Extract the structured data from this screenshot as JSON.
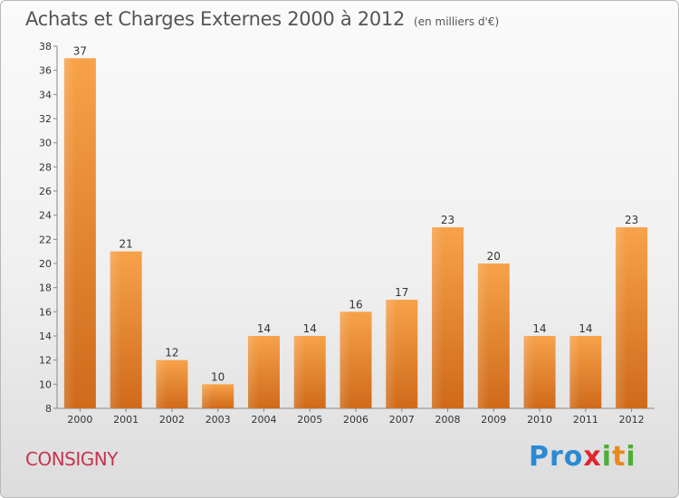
{
  "header": {
    "title": "Achats et Charges Externes 2000 à 2012",
    "unit": "(en milliers d'€)"
  },
  "footer": {
    "commune": "CONSIGNY",
    "logo": {
      "p1": "Pro",
      "p2": "x",
      "p3": "i",
      "p4": "t",
      "p5": "i"
    }
  },
  "colors": {
    "bar": "#f0902e",
    "bar_dark": "#cf6a1a",
    "commune": "#c8334e"
  },
  "chart_data": {
    "type": "bar",
    "categories": [
      "2000",
      "2001",
      "2002",
      "2003",
      "2004",
      "2005",
      "2006",
      "2007",
      "2008",
      "2009",
      "2010",
      "2011",
      "2012"
    ],
    "values": [
      37,
      21,
      12,
      10,
      14,
      14,
      16,
      17,
      23,
      20,
      14,
      14,
      23
    ],
    "title": "Achats et Charges Externes 2000 à 2012",
    "ylim": [
      8,
      38
    ],
    "yticks": [
      8,
      10,
      12,
      14,
      16,
      18,
      20,
      22,
      24,
      26,
      28,
      30,
      32,
      34,
      36,
      38
    ],
    "grid": false,
    "data_labels": true
  }
}
